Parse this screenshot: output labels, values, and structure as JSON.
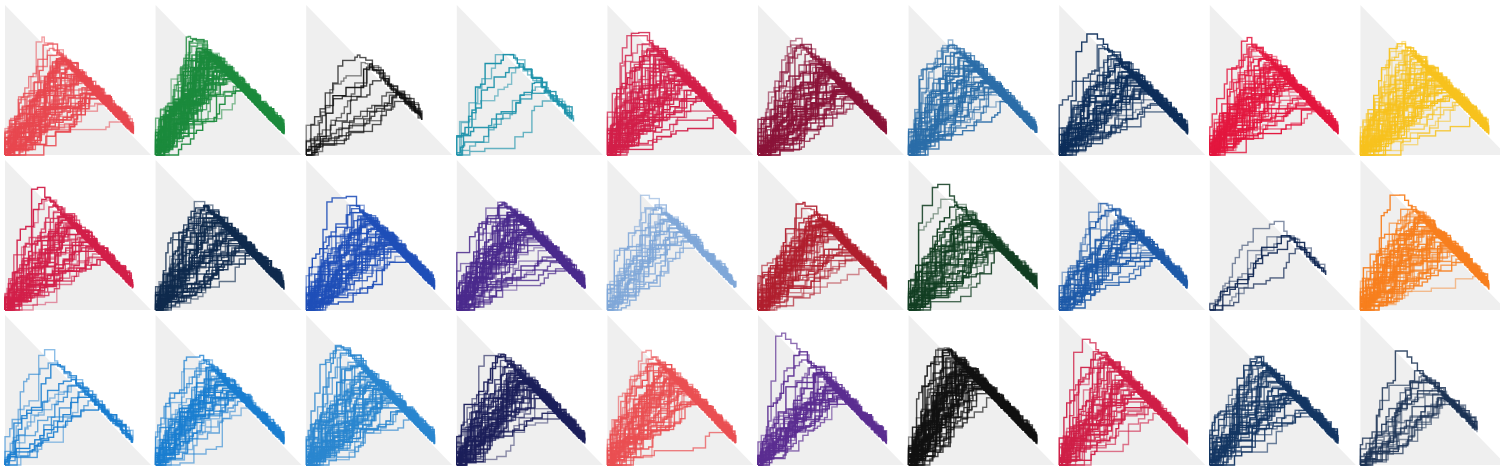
{
  "chart_data": [
    {
      "type": "line",
      "color": "#e8474f",
      "paths": 60,
      "shape": "broad"
    },
    {
      "type": "line",
      "color": "#1b8a3c",
      "paths": 70,
      "shape": "steep"
    },
    {
      "type": "line",
      "color": "#111111",
      "paths": 12,
      "shape": "narrow"
    },
    {
      "type": "line",
      "color": "#1f93ab",
      "paths": 8,
      "shape": "narrow"
    },
    {
      "type": "line",
      "color": "#d21f49",
      "paths": 60,
      "shape": "broad"
    },
    {
      "type": "line",
      "color": "#8a1338",
      "paths": 55,
      "shape": "broad"
    },
    {
      "type": "line",
      "color": "#2b6da8",
      "paths": 45,
      "shape": "broad"
    },
    {
      "type": "line",
      "color": "#0d2e5a",
      "paths": 45,
      "shape": "broad"
    },
    {
      "type": "line",
      "color": "#e3163e",
      "paths": 55,
      "shape": "broad"
    },
    {
      "type": "line",
      "color": "#f7c21e",
      "paths": 60,
      "shape": "broad"
    },
    {
      "type": "line",
      "color": "#d21f49",
      "paths": 45,
      "shape": "broad"
    },
    {
      "type": "line",
      "color": "#0f2a4d",
      "paths": 50,
      "shape": "broad"
    },
    {
      "type": "line",
      "color": "#1f4fb8",
      "paths": 50,
      "shape": "broad"
    },
    {
      "type": "line",
      "color": "#4a2a8c",
      "paths": 50,
      "shape": "broad"
    },
    {
      "type": "line",
      "color": "#7fa7d8",
      "paths": 25,
      "shape": "broad"
    },
    {
      "type": "line",
      "color": "#b01f2e",
      "paths": 50,
      "shape": "broad"
    },
    {
      "type": "line",
      "color": "#123e22",
      "paths": 45,
      "shape": "broad"
    },
    {
      "type": "line",
      "color": "#1e5aa8",
      "paths": 35,
      "shape": "broad"
    },
    {
      "type": "line",
      "color": "#0c2350",
      "paths": 6,
      "shape": "narrow"
    },
    {
      "type": "line",
      "color": "#f77f1e",
      "paths": 55,
      "shape": "broad"
    },
    {
      "type": "line",
      "color": "#1a7ed0",
      "paths": 12,
      "shape": "broad"
    },
    {
      "type": "line",
      "color": "#1a7ed0",
      "paths": 40,
      "shape": "broad"
    },
    {
      "type": "line",
      "color": "#2a86cf",
      "paths": 55,
      "shape": "broad"
    },
    {
      "type": "line",
      "color": "#1c1f5a",
      "paths": 50,
      "shape": "broad"
    },
    {
      "type": "line",
      "color": "#ea4f52",
      "paths": 50,
      "shape": "broad"
    },
    {
      "type": "line",
      "color": "#5b2d91",
      "paths": 35,
      "shape": "broad"
    },
    {
      "type": "line",
      "color": "#111111",
      "paths": 60,
      "shape": "steep"
    },
    {
      "type": "line",
      "color": "#cf1f47",
      "paths": 45,
      "shape": "broad"
    },
    {
      "type": "line",
      "color": "#143663",
      "paths": 40,
      "shape": "broad"
    },
    {
      "type": "line",
      "color": "#1c3355",
      "paths": 20,
      "shape": "narrow"
    }
  ]
}
